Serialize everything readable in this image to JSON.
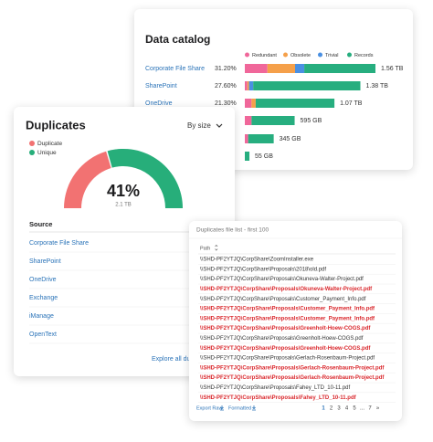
{
  "catalog": {
    "type": "bar",
    "orientation": "horizontal",
    "stacked": true,
    "title": "Data catalog",
    "categories": [
      "Corporate File Share",
      "SharePoint",
      "OneDrive",
      null,
      null,
      null
    ],
    "share_labels": [
      "31.20%",
      "27.60%",
      "21.30%",
      null,
      null,
      null
    ],
    "total_labels": [
      "1.56 TB",
      "1.38 TB",
      "1.07 TB",
      "595 GB",
      "345 GB",
      "55 GB"
    ],
    "series": [
      {
        "name": "Redundant",
        "color": "#f0679a",
        "values": [
          0.27,
          0.03,
          0.08,
          0.08,
          0.04,
          0
        ]
      },
      {
        "name": "Obsolete",
        "color": "#f5a04a",
        "values": [
          0.33,
          0.02,
          0.05,
          0,
          0,
          0
        ]
      },
      {
        "name": "Trivial",
        "color": "#4a90e2",
        "values": [
          0.11,
          0.05,
          0,
          0,
          0,
          0
        ]
      },
      {
        "name": "Records",
        "color": "#27ae7f",
        "values": [
          0.85,
          1.28,
          0.94,
          0.515,
          0.305,
          0.055
        ]
      }
    ]
  },
  "duplicates": {
    "title": "Duplicates",
    "sort": "By size",
    "chart": {
      "type": "pie",
      "style": "half-donut",
      "series": [
        {
          "name": "Duplicate",
          "color": "#f27272",
          "value": 41
        },
        {
          "name": "Unique",
          "color": "#27ae7a",
          "value": 59
        }
      ],
      "center_label": "41%",
      "center_sublabel": "2.1 TB"
    },
    "source_header": "Source",
    "sources": [
      "Corporate File Share",
      "SharePoint",
      "OneDrive",
      "Exchange",
      "iManage",
      "OpenText"
    ],
    "link": "Explore all duplicates"
  },
  "file_list": {
    "title": "Duplicates file list - first 100",
    "column": "Path",
    "rows": [
      {
        "path": "\\\\SHD-PF2YTJQ\\CorpShare\\ZoomInstaller.exe",
        "duplicate": false
      },
      {
        "path": "\\\\SHD-PF2YTJQ\\CorpShare\\Proposals\\2018\\old.pdf",
        "duplicate": false
      },
      {
        "path": "\\\\SHD-PF2YTJQ\\CorpShare\\Proposals\\Okuneva-Walter-Project.pdf",
        "duplicate": false
      },
      {
        "path": "\\\\SHD-PF2YTJQ\\CorpShare\\Proposals\\Okuneva-Walter-Project.pdf",
        "duplicate": true
      },
      {
        "path": "\\\\SHD-PF2YTJQ\\CorpShare\\Proposals\\Customer_Payment_Info.pdf",
        "duplicate": false
      },
      {
        "path": "\\\\SHD-PF2YTJQ\\CorpShare\\Proposals\\Customer_Payment_Info.pdf",
        "duplicate": true
      },
      {
        "path": "\\\\SHD-PF2YTJQ\\CorpShare\\Proposals\\Customer_Payment_Info.pdf",
        "duplicate": true
      },
      {
        "path": "\\\\SHD-PF2YTJQ\\CorpShare\\Proposals\\Greenholt-Hoew-COGS.pdf",
        "duplicate": true
      },
      {
        "path": "\\\\SHD-PF2YTJQ\\CorpShare\\Proposals\\Greenholt-Hoew-COGS.pdf",
        "duplicate": false
      },
      {
        "path": "\\\\SHD-PF2YTJQ\\CorpShare\\Proposals\\Greenholt-Hoew-COGS.pdf",
        "duplicate": true
      },
      {
        "path": "\\\\SHD-PF2YTJQ\\CorpShare\\Proposals\\Gerlach-Rosenbaum-Project.pdf",
        "duplicate": false
      },
      {
        "path": "\\\\SHD-PF2YTJQ\\CorpShare\\Proposals\\Gerlach-Rosenbaum-Project.pdf",
        "duplicate": true
      },
      {
        "path": "\\\\SHD-PF2YTJQ\\CorpShare\\Proposals\\Gerlach-Rosenbaum-Project.pdf",
        "duplicate": true
      },
      {
        "path": "\\\\SHD-PF2YTJQ\\CorpShare\\Proposals\\Fahey_LTD_10-11.pdf",
        "duplicate": false
      },
      {
        "path": "\\\\SHD-PF2YTJQ\\CorpShare\\Proposals\\Fahey_LTD_10-11.pdf",
        "duplicate": true
      }
    ],
    "export_raw": "Export Raw",
    "formatted": "Formatted",
    "pages": [
      1,
      2,
      3,
      4,
      5,
      "...",
      7,
      "»"
    ]
  }
}
